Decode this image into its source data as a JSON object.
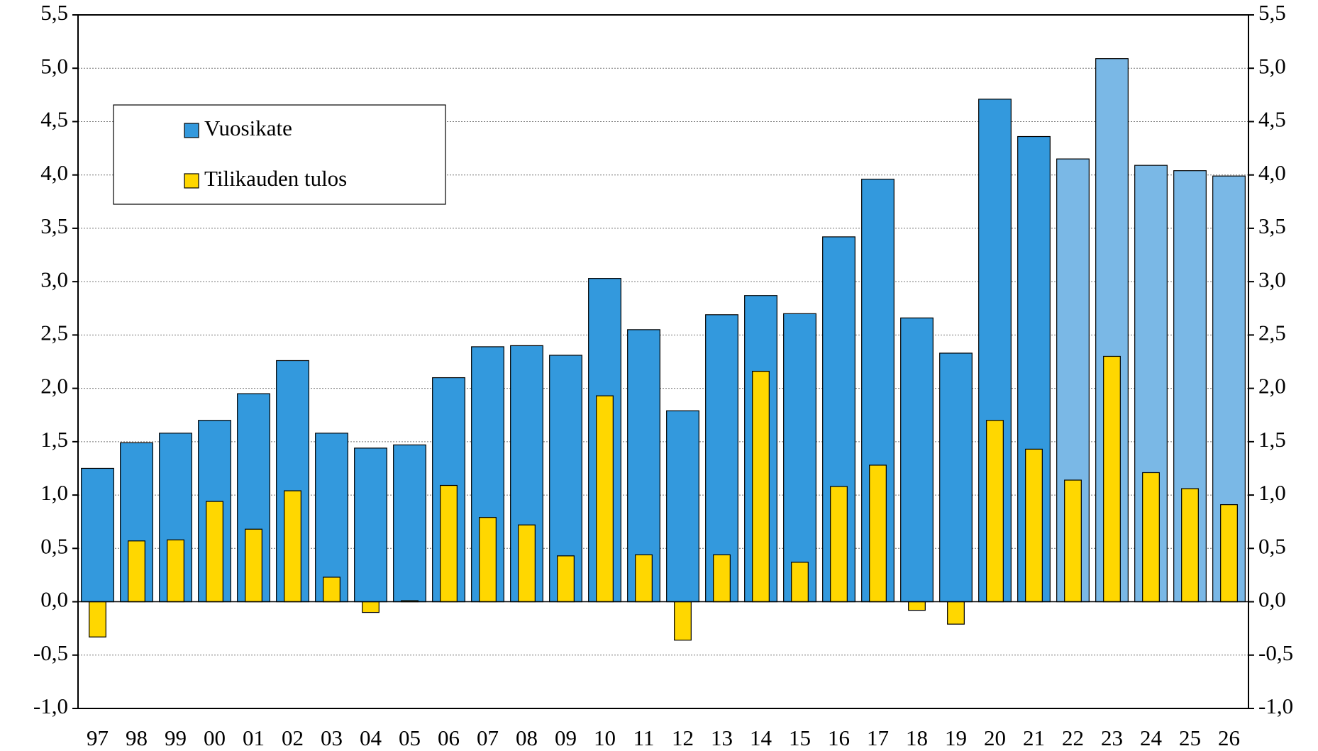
{
  "chart_data": {
    "type": "bar",
    "categories": [
      "97",
      "98",
      "99",
      "00",
      "01",
      "02",
      "03",
      "04",
      "05",
      "06",
      "07",
      "08",
      "09",
      "10",
      "11",
      "12",
      "13",
      "14",
      "15",
      "16",
      "17",
      "18",
      "19",
      "20",
      "21",
      "22",
      "23",
      "24",
      "25",
      "26"
    ],
    "series": [
      {
        "name": "Vuosikate",
        "color": "#3399dd",
        "colors": [
          "#3399dd",
          "#3399dd",
          "#3399dd",
          "#3399dd",
          "#3399dd",
          "#3399dd",
          "#3399dd",
          "#3399dd",
          "#3399dd",
          "#3399dd",
          "#3399dd",
          "#3399dd",
          "#3399dd",
          "#3399dd",
          "#3399dd",
          "#3399dd",
          "#3399dd",
          "#3399dd",
          "#3399dd",
          "#3399dd",
          "#3399dd",
          "#3399dd",
          "#3399dd",
          "#3399dd",
          "#3399dd",
          "#7ab8e6",
          "#7ab8e6",
          "#7ab8e6",
          "#7ab8e6",
          "#7ab8e6"
        ],
        "values": [
          1.25,
          1.49,
          1.58,
          1.7,
          1.95,
          2.26,
          1.58,
          1.44,
          1.47,
          2.1,
          2.39,
          2.4,
          2.31,
          3.03,
          2.55,
          1.79,
          2.69,
          2.87,
          2.7,
          3.42,
          3.96,
          2.66,
          2.33,
          4.71,
          4.36,
          4.15,
          5.09,
          4.09,
          4.04,
          3.99
        ]
      },
      {
        "name": "Tilikauden tulos",
        "color": "#ffd700",
        "values": [
          -0.33,
          0.57,
          0.58,
          0.94,
          0.68,
          1.04,
          0.23,
          -0.1,
          0.01,
          1.09,
          0.79,
          0.72,
          0.43,
          1.93,
          0.44,
          -0.36,
          0.44,
          2.16,
          0.37,
          1.08,
          1.28,
          -0.08,
          -0.21,
          1.7,
          1.43,
          1.14,
          2.3,
          1.21,
          1.06,
          0.91
        ]
      }
    ],
    "ylim": [
      -1.0,
      5.5
    ],
    "yticks": [
      {
        "value": -1.0,
        "label": "-1,0"
      },
      {
        "value": -0.5,
        "label": "-0,5"
      },
      {
        "value": 0,
        "label": "0,0"
      },
      {
        "value": 0.5,
        "label": "0,5"
      },
      {
        "value": 1.0,
        "label": "1,0"
      },
      {
        "value": 1.5,
        "label": "1,5"
      },
      {
        "value": 2.0,
        "label": "2,0"
      },
      {
        "value": 2.5,
        "label": "2,5"
      },
      {
        "value": 3.0,
        "label": "3,0"
      },
      {
        "value": 3.5,
        "label": "3,5"
      },
      {
        "value": 4.0,
        "label": "4,0"
      },
      {
        "value": 4.5,
        "label": "4,5"
      },
      {
        "value": 5.0,
        "label": "5,0"
      },
      {
        "value": 5.5,
        "label": "5,5"
      }
    ],
    "y2lim": [
      -1.0,
      5.5
    ],
    "y2ticks": [
      {
        "value": -1.0,
        "label": "-1,0"
      },
      {
        "value": -0.5,
        "label": "-0,5"
      },
      {
        "value": 0,
        "label": "0,0"
      },
      {
        "value": 0.5,
        "label": "0,5"
      },
      {
        "value": 1.0,
        "label": "1,0"
      },
      {
        "value": 1.5,
        "label": "1,5"
      },
      {
        "value": 2.0,
        "label": "2,0"
      },
      {
        "value": 2.5,
        "label": "2,5"
      },
      {
        "value": 3.0,
        "label": "3,0"
      },
      {
        "value": 3.5,
        "label": "3,5"
      },
      {
        "value": 4.0,
        "label": "4,0"
      },
      {
        "value": 4.5,
        "label": "4,5"
      },
      {
        "value": 5.0,
        "label": "5,0"
      },
      {
        "value": 5.5,
        "label": "5,5"
      }
    ],
    "grid": true,
    "legend": "upper-left"
  }
}
